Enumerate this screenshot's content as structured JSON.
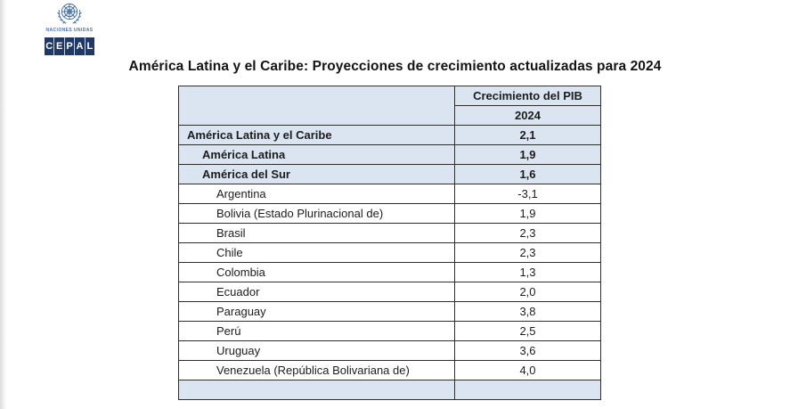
{
  "branding": {
    "un_caption": "NACIONES UNIDAS",
    "cepal_letters": [
      "C",
      "E",
      "P",
      "A",
      "L"
    ],
    "cepal_bg": "#1f3864",
    "un_blue": "#4a72a8"
  },
  "title": "América Latina y el Caribe: Proyecciones de crecimiento actualizadas para 2024",
  "table": {
    "header": {
      "group": "Crecimiento del PIB",
      "year": "2024"
    },
    "highlight_bg": "#dbe5f1",
    "rows": [
      {
        "label": "América Latina y el Caribe",
        "value": "2,1",
        "level": 1,
        "highlight": true
      },
      {
        "label": "América Latina",
        "value": "1,9",
        "level": 2,
        "highlight": true
      },
      {
        "label": "América del Sur",
        "value": "1,6",
        "level": 2,
        "highlight": true
      },
      {
        "label": "Argentina",
        "value": "-3,1",
        "level": 3,
        "highlight": false
      },
      {
        "label": "Bolivia (Estado Plurinacional de)",
        "value": "1,9",
        "level": 3,
        "highlight": false
      },
      {
        "label": "Brasil",
        "value": "2,3",
        "level": 3,
        "highlight": false
      },
      {
        "label": "Chile",
        "value": "2,3",
        "level": 3,
        "highlight": false
      },
      {
        "label": "Colombia",
        "value": "1,3",
        "level": 3,
        "highlight": false
      },
      {
        "label": "Ecuador",
        "value": "2,0",
        "level": 3,
        "highlight": false
      },
      {
        "label": "Paraguay",
        "value": "3,8",
        "level": 3,
        "highlight": false
      },
      {
        "label": "Perú",
        "value": "2,5",
        "level": 3,
        "highlight": false
      },
      {
        "label": "Uruguay",
        "value": "3,6",
        "level": 3,
        "highlight": false
      },
      {
        "label": "Venezuela (República Bolivariana de)",
        "value": "4,0",
        "level": 3,
        "highlight": false
      },
      {
        "label": "",
        "value": "",
        "level": 1,
        "highlight": true
      }
    ]
  },
  "chart_data": {
    "type": "table",
    "title": "América Latina y el Caribe: Proyecciones de crecimiento actualizadas para 2024",
    "columns": [
      "",
      "Crecimiento del PIB 2024"
    ],
    "rows": [
      [
        "América Latina y el Caribe",
        2.1
      ],
      [
        "América Latina",
        1.9
      ],
      [
        "América del Sur",
        1.6
      ],
      [
        "Argentina",
        -3.1
      ],
      [
        "Bolivia (Estado Plurinacional de)",
        1.9
      ],
      [
        "Brasil",
        2.3
      ],
      [
        "Chile",
        2.3
      ],
      [
        "Colombia",
        1.3
      ],
      [
        "Ecuador",
        2.0
      ],
      [
        "Paraguay",
        3.8
      ],
      [
        "Perú",
        2.5
      ],
      [
        "Uruguay",
        3.6
      ],
      [
        "Venezuela (República Bolivariana de)",
        4.0
      ]
    ]
  }
}
